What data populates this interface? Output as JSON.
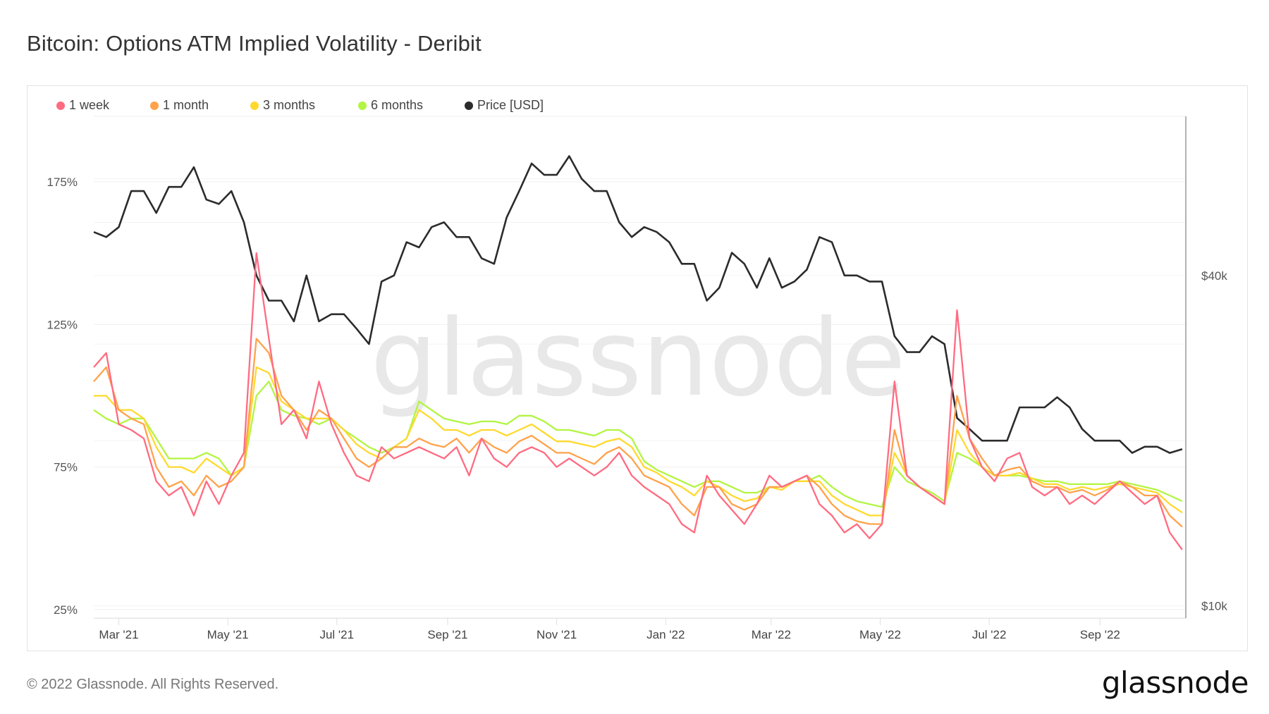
{
  "title": "Bitcoin: Options ATM Implied Volatility - Deribit",
  "footer": "© 2022 Glassnode. All Rights Reserved.",
  "logo": "glassnode",
  "watermark": "glassnode",
  "chart_data": {
    "type": "line",
    "title": "Bitcoin: Options ATM Implied Volatility - Deribit",
    "legend_position": "top-left",
    "grid": true,
    "xlim": [
      "2021-02-15",
      "2022-10-19"
    ],
    "x_ticks": [
      {
        "date": "2021-03-01",
        "label": "Mar '21"
      },
      {
        "date": "2021-05-01",
        "label": "May '21"
      },
      {
        "date": "2021-07-01",
        "label": "Jul '21"
      },
      {
        "date": "2021-09-01",
        "label": "Sep '21"
      },
      {
        "date": "2021-11-01",
        "label": "Nov '21"
      },
      {
        "date": "2022-01-01",
        "label": "Jan '22"
      },
      {
        "date": "2022-03-01",
        "label": "Mar '22"
      },
      {
        "date": "2022-05-01",
        "label": "May '22"
      },
      {
        "date": "2022-07-01",
        "label": "Jul '22"
      },
      {
        "date": "2022-09-01",
        "label": "Sep '22"
      }
    ],
    "y_left": {
      "scale": "linear",
      "unit": "%",
      "ylim": [
        22,
        198
      ],
      "ticks": [
        {
          "value": 25,
          "label": "25%"
        },
        {
          "value": 75,
          "label": "75%"
        },
        {
          "value": 125,
          "label": "125%"
        },
        {
          "value": 175,
          "label": "175%"
        }
      ]
    },
    "y_right": {
      "scale": "log",
      "unit": "USD",
      "ylim": [
        9500,
        78000
      ],
      "ticks": [
        {
          "value": 10000,
          "label": "$10k"
        },
        {
          "value": 40000,
          "label": "$40k"
        }
      ]
    },
    "x": [
      "2021-02-15",
      "2021-02-22",
      "2021-03-01",
      "2021-03-08",
      "2021-03-15",
      "2021-03-22",
      "2021-03-29",
      "2021-04-05",
      "2021-04-12",
      "2021-04-19",
      "2021-04-26",
      "2021-05-03",
      "2021-05-10",
      "2021-05-17",
      "2021-05-24",
      "2021-05-31",
      "2021-06-07",
      "2021-06-14",
      "2021-06-21",
      "2021-06-28",
      "2021-07-05",
      "2021-07-12",
      "2021-07-19",
      "2021-07-26",
      "2021-08-02",
      "2021-08-09",
      "2021-08-16",
      "2021-08-23",
      "2021-08-30",
      "2021-09-06",
      "2021-09-13",
      "2021-09-20",
      "2021-09-27",
      "2021-10-04",
      "2021-10-11",
      "2021-10-18",
      "2021-10-25",
      "2021-11-01",
      "2021-11-08",
      "2021-11-15",
      "2021-11-22",
      "2021-11-29",
      "2021-12-06",
      "2021-12-13",
      "2021-12-20",
      "2021-12-27",
      "2022-01-03",
      "2022-01-10",
      "2022-01-17",
      "2022-01-24",
      "2022-01-31",
      "2022-02-07",
      "2022-02-14",
      "2022-02-21",
      "2022-02-28",
      "2022-03-07",
      "2022-03-14",
      "2022-03-21",
      "2022-03-28",
      "2022-04-04",
      "2022-04-11",
      "2022-04-18",
      "2022-04-25",
      "2022-05-02",
      "2022-05-09",
      "2022-05-16",
      "2022-05-23",
      "2022-05-30",
      "2022-06-06",
      "2022-06-13",
      "2022-06-20",
      "2022-06-27",
      "2022-07-04",
      "2022-07-11",
      "2022-07-18",
      "2022-07-25",
      "2022-08-01",
      "2022-08-08",
      "2022-08-15",
      "2022-08-22",
      "2022-08-29",
      "2022-09-05",
      "2022-09-12",
      "2022-09-19",
      "2022-09-26",
      "2022-10-03",
      "2022-10-10",
      "2022-10-17"
    ],
    "series": [
      {
        "name": "1 week",
        "axis": "left",
        "color": "#ff6b81",
        "values": [
          110,
          115,
          90,
          88,
          85,
          70,
          65,
          68,
          58,
          70,
          62,
          72,
          80,
          150,
          120,
          90,
          95,
          85,
          105,
          90,
          80,
          72,
          70,
          82,
          78,
          80,
          82,
          80,
          78,
          82,
          72,
          85,
          78,
          75,
          80,
          82,
          80,
          75,
          78,
          75,
          72,
          75,
          80,
          72,
          68,
          65,
          62,
          55,
          52,
          72,
          65,
          60,
          55,
          62,
          72,
          68,
          70,
          72,
          62,
          58,
          52,
          55,
          50,
          55,
          105,
          72,
          68,
          65,
          62,
          130,
          85,
          75,
          70,
          78,
          80,
          68,
          65,
          68,
          62,
          65,
          62,
          66,
          70,
          66,
          62,
          65,
          52,
          46
        ]
      },
      {
        "name": "1 month",
        "axis": "left",
        "color": "#ffa24a",
        "values": [
          105,
          110,
          95,
          92,
          90,
          75,
          68,
          70,
          65,
          72,
          68,
          70,
          75,
          120,
          115,
          100,
          95,
          88,
          95,
          92,
          85,
          78,
          75,
          78,
          82,
          82,
          85,
          83,
          82,
          85,
          80,
          85,
          82,
          80,
          84,
          86,
          83,
          80,
          80,
          78,
          76,
          80,
          82,
          78,
          72,
          70,
          68,
          62,
          58,
          68,
          68,
          62,
          60,
          62,
          68,
          68,
          70,
          72,
          68,
          62,
          58,
          56,
          55,
          55,
          88,
          72,
          68,
          65,
          62,
          100,
          85,
          78,
          72,
          74,
          75,
          70,
          68,
          68,
          66,
          67,
          65,
          67,
          70,
          68,
          65,
          65,
          58,
          54
        ]
      },
      {
        "name": "3 months",
        "axis": "left",
        "color": "#ffd92e",
        "values": [
          100,
          100,
          95,
          95,
          92,
          82,
          75,
          75,
          73,
          78,
          75,
          72,
          75,
          110,
          108,
          98,
          95,
          92,
          92,
          92,
          88,
          83,
          80,
          78,
          82,
          85,
          95,
          92,
          88,
          88,
          86,
          88,
          88,
          86,
          88,
          90,
          87,
          84,
          84,
          83,
          82,
          84,
          85,
          82,
          75,
          73,
          70,
          68,
          65,
          70,
          68,
          65,
          63,
          64,
          68,
          67,
          70,
          70,
          70,
          65,
          62,
          60,
          58,
          58,
          80,
          72,
          68,
          65,
          62,
          88,
          80,
          75,
          72,
          72,
          73,
          71,
          69,
          69,
          67,
          68,
          67,
          68,
          69,
          68,
          67,
          66,
          62,
          59
        ]
      },
      {
        "name": "6 months",
        "axis": "left",
        "color": "#b2f542",
        "values": [
          95,
          92,
          90,
          92,
          92,
          85,
          78,
          78,
          78,
          80,
          78,
          72,
          75,
          100,
          105,
          95,
          93,
          92,
          90,
          92,
          88,
          85,
          82,
          80,
          82,
          85,
          98,
          95,
          92,
          91,
          90,
          91,
          91,
          90,
          93,
          93,
          91,
          88,
          88,
          87,
          86,
          88,
          88,
          85,
          77,
          74,
          72,
          70,
          68,
          70,
          70,
          68,
          66,
          66,
          68,
          68,
          70,
          70,
          72,
          68,
          65,
          63,
          62,
          61,
          75,
          70,
          68,
          66,
          63,
          80,
          78,
          75,
          72,
          72,
          72,
          71,
          70,
          70,
          69,
          69,
          69,
          69,
          70,
          69,
          68,
          67,
          65,
          63
        ]
      },
      {
        "name": "Price [USD]",
        "axis": "right",
        "color": "#2b2b2b",
        "values": [
          48000,
          47000,
          49000,
          57000,
          57000,
          52000,
          58000,
          58000,
          63000,
          55000,
          54000,
          57000,
          50000,
          40000,
          36000,
          36000,
          33000,
          40000,
          33000,
          34000,
          34000,
          32000,
          30000,
          39000,
          40000,
          46000,
          45000,
          49000,
          50000,
          47000,
          47000,
          43000,
          42000,
          51000,
          57000,
          64000,
          61000,
          61000,
          66000,
          60000,
          57000,
          57000,
          50000,
          47000,
          49000,
          48000,
          46000,
          42000,
          42000,
          36000,
          38000,
          44000,
          42000,
          38000,
          43000,
          38000,
          39000,
          41000,
          47000,
          46000,
          40000,
          40000,
          39000,
          39000,
          31000,
          29000,
          29000,
          31000,
          30000,
          22000,
          21000,
          20000,
          20000,
          20000,
          23000,
          23000,
          23000,
          24000,
          23000,
          21000,
          20000,
          20000,
          20000,
          19000,
          19500,
          19500,
          19000,
          19300
        ]
      }
    ]
  }
}
